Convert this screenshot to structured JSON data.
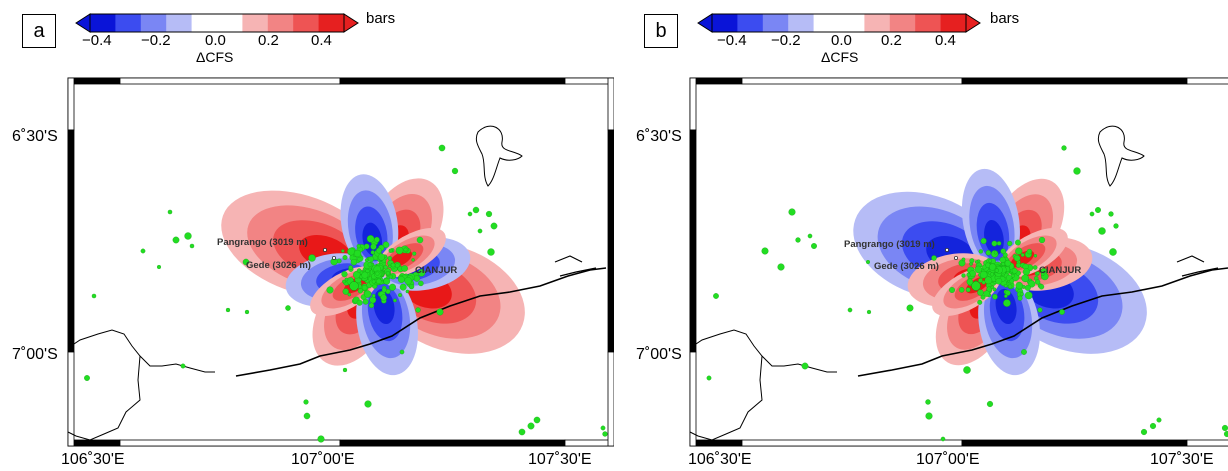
{
  "colorbar": {
    "ticks": [
      "−0.4",
      "−0.2",
      "0.0",
      "0.2",
      "0.4"
    ],
    "title": "ΔCFS",
    "unit": "bars",
    "colors": [
      "#0a14d8",
      "#3c4cf0",
      "#7a86f4",
      "#b6bcf6",
      "#ffffff",
      "#ffffff",
      "#f6b4b4",
      "#f28484",
      "#ee5454",
      "#e62020"
    ]
  },
  "axes": {
    "lat_labels": [
      "6˚30'S",
      "7˚00'S"
    ],
    "lon_labels": [
      "106˚30'E",
      "107˚00'E",
      "107˚30'E"
    ]
  },
  "places": {
    "pangrango": "Pangrango (3019 m)",
    "gede": "Gede (3026 m)",
    "cianjur": "CIANJUR"
  },
  "panels": [
    {
      "label": "a",
      "pattern": "a"
    },
    {
      "label": "b",
      "pattern": "b"
    }
  ],
  "colors": {
    "positive": "#e8101a",
    "negative": "#1020e0",
    "aftershock": "#22dd22",
    "coast": "#000000"
  }
}
